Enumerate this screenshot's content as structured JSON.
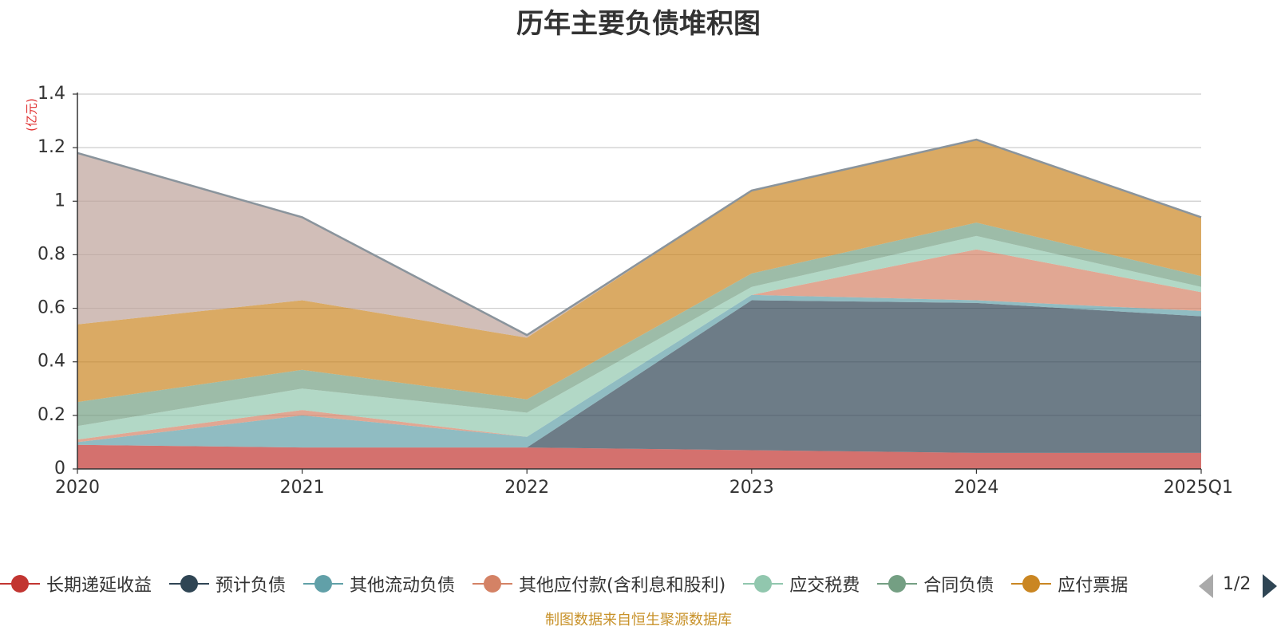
{
  "chart_data": {
    "type": "area",
    "stacked": true,
    "title": "历年主要负债堆积图",
    "unit_label": "(亿元)",
    "categories": [
      "2020",
      "2021",
      "2022",
      "2023",
      "2024",
      "2025Q1"
    ],
    "ylim": [
      0,
      1.4
    ],
    "yticks": [
      0,
      0.2,
      0.4,
      0.6,
      0.8,
      1,
      1.2,
      1.4
    ],
    "ytick_labels": [
      "0",
      "0.2",
      "0.4",
      "0.6",
      "0.8",
      "1",
      "1.2",
      "1.4"
    ],
    "grid": true,
    "series": [
      {
        "name": "长期递延收益",
        "color": "#c23531",
        "values": [
          0.09,
          0.08,
          0.08,
          0.07,
          0.06,
          0.06
        ],
        "in_legend": true
      },
      {
        "name": "预计负债",
        "color": "#2f4554",
        "values": [
          0,
          0,
          0,
          0.56,
          0.56,
          0.51
        ],
        "in_legend": true
      },
      {
        "name": "其他流动负债",
        "color": "#61a0a8",
        "values": [
          0.01,
          0.12,
          0.04,
          0.02,
          0.01,
          0.02
        ],
        "in_legend": true
      },
      {
        "name": "其他应付款(含利息和股利)",
        "color": "#d48265",
        "values": [
          0.01,
          0.02,
          0,
          0,
          0.19,
          0.07
        ],
        "in_legend": true
      },
      {
        "name": "应交税费",
        "color": "#91c7ae",
        "values": [
          0.05,
          0.08,
          0.09,
          0.03,
          0.05,
          0.02
        ],
        "in_legend": true
      },
      {
        "name": "合同负债",
        "color": "#749f83",
        "values": [
          0.09,
          0.07,
          0.05,
          0.05,
          0.05,
          0.04
        ],
        "in_legend": true
      },
      {
        "name": "应付票据",
        "color": "#ca8622",
        "values": [
          0.29,
          0.26,
          0.23,
          0.31,
          0.31,
          0.22
        ],
        "in_legend": true
      },
      {
        "name": "",
        "color": "#bda29a",
        "values": [
          0.64,
          0.31,
          0.01,
          0,
          0,
          0
        ],
        "in_legend": false
      }
    ],
    "legend_labels": [
      "长期递延收益",
      "预计负债",
      "其他流动负债",
      "其他应付款(含利息和股利)",
      "应交税费",
      "合同负债",
      "应付票据"
    ],
    "legend_page": "1/2",
    "legend_position": "bottom"
  },
  "source_note": "制图数据来自恒生聚源数据库"
}
